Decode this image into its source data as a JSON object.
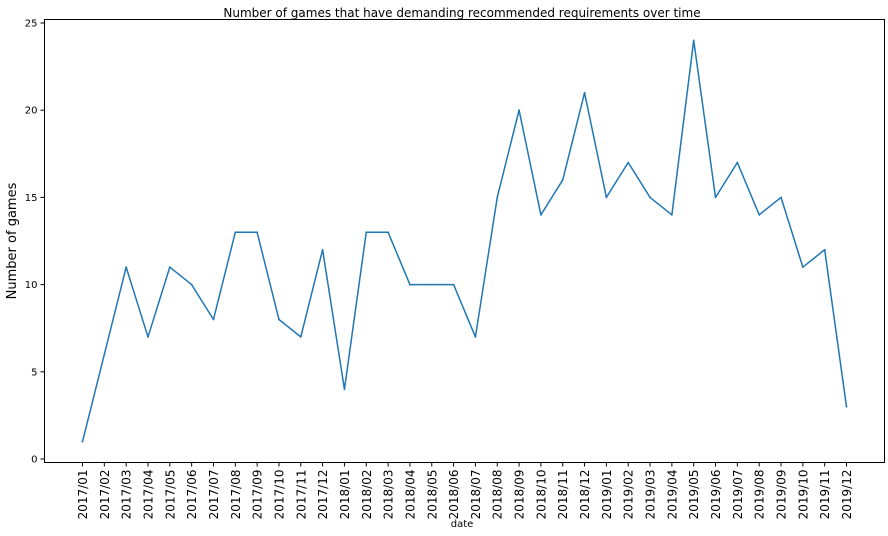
{
  "chart_data": {
    "type": "line",
    "title": "Number of games that have demanding recommended requirements over time",
    "xlabel": "date",
    "ylabel": "Number of games",
    "ylim": [
      -0.2,
      25.2
    ],
    "yticks": [
      0,
      5,
      10,
      15,
      20,
      25
    ],
    "grid": false,
    "categories": [
      "2017/01",
      "2017/02",
      "2017/03",
      "2017/04",
      "2017/05",
      "2017/06",
      "2017/07",
      "2017/08",
      "2017/09",
      "2017/10",
      "2017/11",
      "2017/12",
      "2018/01",
      "2018/02",
      "2018/03",
      "2018/04",
      "2018/05",
      "2018/06",
      "2018/07",
      "2018/08",
      "2018/09",
      "2018/10",
      "2018/11",
      "2018/12",
      "2019/01",
      "2019/02",
      "2019/03",
      "2019/04",
      "2019/05",
      "2019/06",
      "2019/07",
      "2019/08",
      "2019/09",
      "2019/10",
      "2019/11",
      "2019/12"
    ],
    "series": [
      {
        "color": "#1f77b4",
        "values": [
          1,
          6,
          11,
          7,
          11,
          10,
          8,
          13,
          13,
          8,
          7,
          12,
          4,
          13,
          13,
          10,
          10,
          10,
          7,
          15,
          20,
          14,
          16,
          21,
          15,
          17,
          15,
          14,
          24,
          15,
          17,
          14,
          15,
          11,
          12,
          3
        ]
      }
    ]
  }
}
